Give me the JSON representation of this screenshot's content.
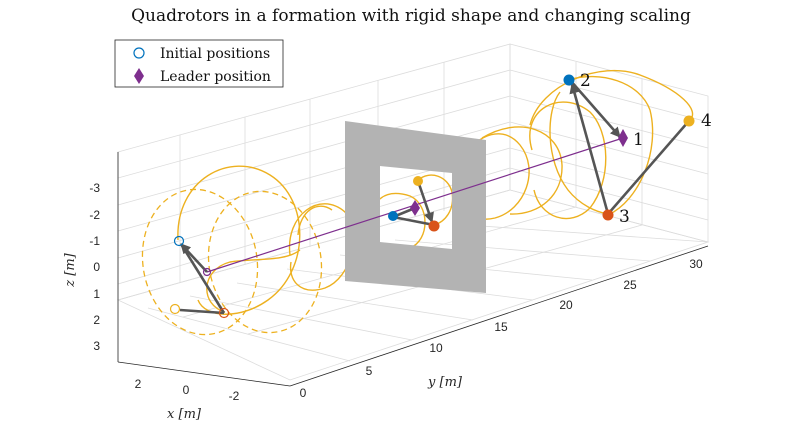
{
  "chart_data": {
    "type": "3d-line",
    "title": "Quadrotors in a formation with rigid shape and changing scaling",
    "xlabel": "x [m]",
    "ylabel": "y [m]",
    "zlabel": "z [m]",
    "x_ticks": [
      "2",
      "0",
      "-2"
    ],
    "y_ticks": [
      "0",
      "5",
      "10",
      "15",
      "20",
      "25",
      "30"
    ],
    "z_ticks": [
      "-3",
      "-2",
      "-1",
      "0",
      "1",
      "2",
      "3"
    ],
    "zdir": "reverse",
    "grid": true,
    "legend": {
      "placement": "top-left",
      "entries": [
        {
          "label": "Initial positions",
          "marker": "open-circle",
          "color": "#0072bd"
        },
        {
          "label": "Leader position",
          "marker": "diamond",
          "color": "#7e2f8e"
        }
      ]
    },
    "obstacle": {
      "type": "square-frame",
      "color": "#b3b3b3"
    },
    "agent_labels": [
      "1",
      "2",
      "3",
      "4"
    ],
    "colors": {
      "agent_1": "#7e2f8e",
      "agent_2": "#0072bd",
      "agent_3": "#d95319",
      "agent_4": "#edb120",
      "links": "#555555",
      "leader_path": "#7e2f8e"
    }
  }
}
